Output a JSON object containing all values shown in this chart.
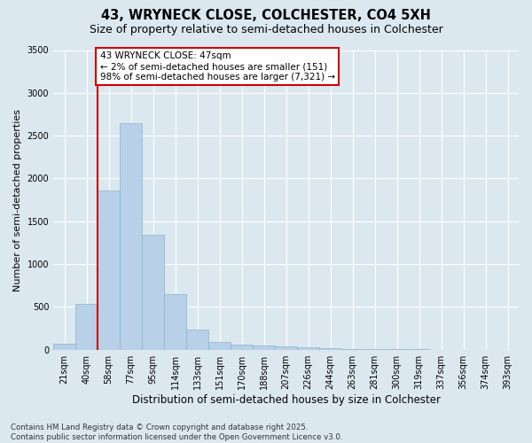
{
  "title1": "43, WRYNECK CLOSE, COLCHESTER, CO4 5XH",
  "title2": "Size of property relative to semi-detached houses in Colchester",
  "xlabel": "Distribution of semi-detached houses by size in Colchester",
  "ylabel": "Number of semi-detached properties",
  "footer1": "Contains HM Land Registry data © Crown copyright and database right 2025.",
  "footer2": "Contains public sector information licensed under the Open Government Licence v3.0.",
  "categories": [
    "21sqm",
    "40sqm",
    "58sqm",
    "77sqm",
    "95sqm",
    "114sqm",
    "133sqm",
    "151sqm",
    "170sqm",
    "188sqm",
    "207sqm",
    "226sqm",
    "244sqm",
    "263sqm",
    "281sqm",
    "300sqm",
    "319sqm",
    "337sqm",
    "356sqm",
    "374sqm",
    "393sqm"
  ],
  "values": [
    65,
    530,
    1860,
    2650,
    1340,
    645,
    240,
    95,
    60,
    50,
    38,
    25,
    18,
    12,
    8,
    5,
    3,
    2,
    1,
    1,
    0
  ],
  "bar_color": "#b8d0e8",
  "bar_edge_color": "#8ab4cc",
  "vline_x_idx": 1.5,
  "vline_color": "#cc0000",
  "annotation_title": "43 WRYNECK CLOSE: 47sqm",
  "annotation_line1": "← 2% of semi-detached houses are smaller (151)",
  "annotation_line2": "98% of semi-detached houses are larger (7,321) →",
  "annotation_box_facecolor": "#ffffff",
  "annotation_box_edgecolor": "#cc0000",
  "bg_color": "#dce8f0",
  "plot_bg_color": "#dce8f0",
  "ylim": [
    0,
    3500
  ],
  "yticks": [
    0,
    500,
    1000,
    1500,
    2000,
    2500,
    3000,
    3500
  ],
  "grid_color": "#ffffff",
  "title_fontsize": 10.5,
  "subtitle_fontsize": 9,
  "tick_fontsize": 7,
  "ylabel_fontsize": 8,
  "xlabel_fontsize": 8.5,
  "footer_fontsize": 6.2
}
